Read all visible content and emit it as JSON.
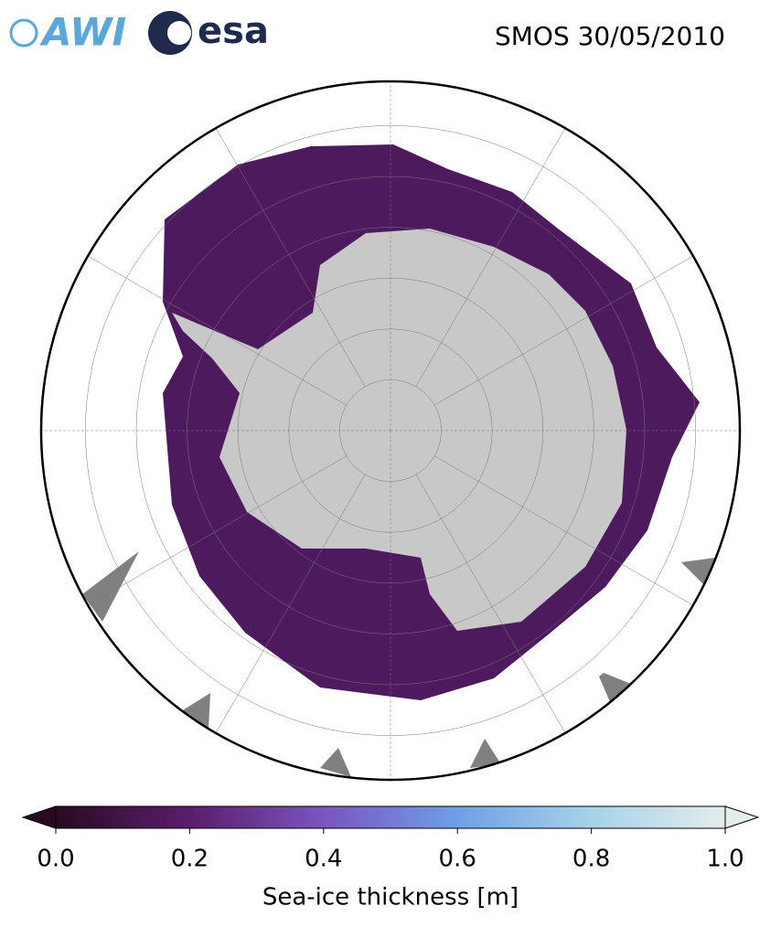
{
  "logos": [
    "AWI",
    "esa"
  ],
  "title": "SMOS 30/05/2010",
  "colorbar": {
    "label": "Sea-ice thickness [m]",
    "lim": [
      0,
      1
    ],
    "colors": [
      "#2a0a22",
      "#5a1e6b",
      "#7a55c0",
      "#6f9ee6",
      "#a6d3e6",
      "#e4ecec"
    ],
    "ticks": [
      {
        "value": 0,
        "label": "0.0"
      },
      {
        "value": 0.2,
        "label": "0.2"
      },
      {
        "value": 0.4,
        "label": "0.4"
      },
      {
        "value": 0.6,
        "label": "0.6"
      },
      {
        "value": 0.8,
        "label": "0.8"
      },
      {
        "value": 1,
        "label": "1.0"
      }
    ]
  }
}
